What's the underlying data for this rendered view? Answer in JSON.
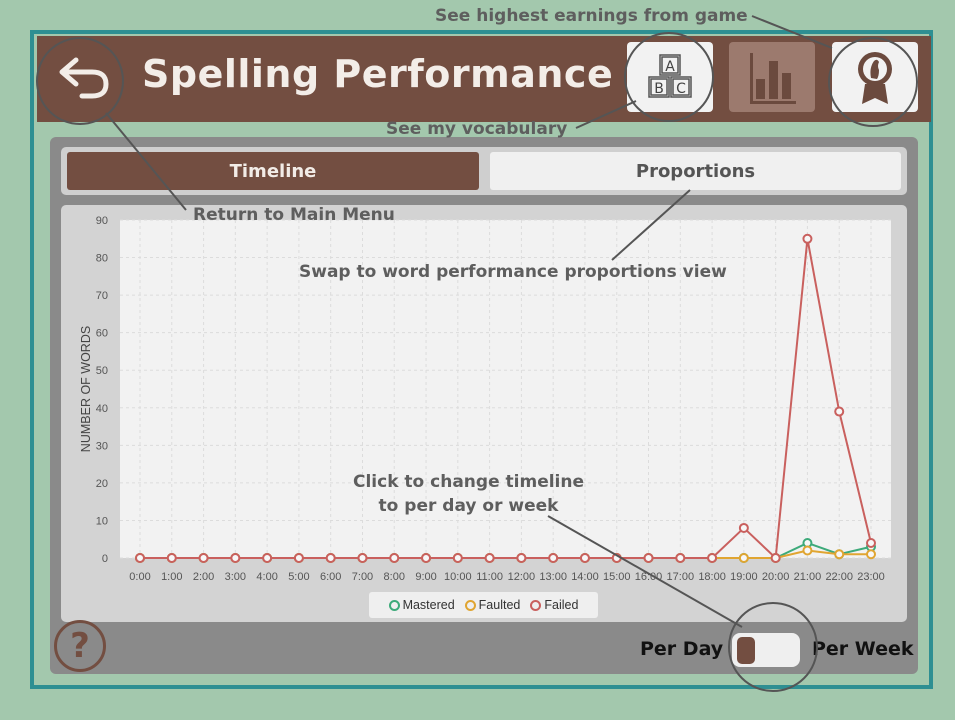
{
  "header": {
    "title": "Spelling Performance",
    "back_icon": "return-arrow-icon",
    "vocab_icon": "abc-blocks-icon",
    "stats_icon": "bar-chart-icon",
    "earnings_icon": "award-ribbon-icon"
  },
  "tabs": [
    {
      "label": "Timeline",
      "active": true
    },
    {
      "label": "Proportions",
      "active": false
    }
  ],
  "annotations": {
    "earnings": "See highest earnings from game",
    "vocab": "See my vocabulary",
    "return": "Return to Main Menu",
    "swap": "Swap to word performance proportions view",
    "click_line1": "Click to change timeline",
    "click_line2": "to per day or week"
  },
  "toggle": {
    "left_label": "Per Day",
    "right_label": "Per Week",
    "selected": "Per Day"
  },
  "help": {
    "icon": "question-mark-icon",
    "label": "?"
  },
  "colors": {
    "brand": "#734e41",
    "mastered": "#3daa7a",
    "faulted": "#e0a531",
    "failed": "#c9605e",
    "outline": "#2e8f92"
  },
  "chart_data": {
    "type": "line",
    "title": "",
    "xlabel": "",
    "ylabel": "NUMBER OF WORDS",
    "ylim": [
      0,
      90
    ],
    "yticks": [
      0,
      10,
      20,
      30,
      40,
      50,
      60,
      70,
      80,
      90
    ],
    "x": [
      "0:00",
      "1:00",
      "2:00",
      "3:00",
      "4:00",
      "5:00",
      "6:00",
      "7:00",
      "8:00",
      "9:00",
      "10:00",
      "11:00",
      "12:00",
      "13:00",
      "14:00",
      "15:00",
      "16:00",
      "17:00",
      "18:00",
      "19:00",
      "20:00",
      "21:00",
      "22:00",
      "23:00"
    ],
    "grid": true,
    "legend_position": "bottom",
    "series": [
      {
        "name": "Mastered",
        "color": "#3daa7a",
        "values": [
          0,
          0,
          0,
          0,
          0,
          0,
          0,
          0,
          0,
          0,
          0,
          0,
          0,
          0,
          0,
          0,
          0,
          0,
          0,
          0,
          0,
          4,
          1,
          3
        ]
      },
      {
        "name": "Faulted",
        "color": "#e0a531",
        "values": [
          0,
          0,
          0,
          0,
          0,
          0,
          0,
          0,
          0,
          0,
          0,
          0,
          0,
          0,
          0,
          0,
          0,
          0,
          0,
          0,
          0,
          2,
          1,
          1
        ]
      },
      {
        "name": "Failed",
        "color": "#c9605e",
        "values": [
          0,
          0,
          0,
          0,
          0,
          0,
          0,
          0,
          0,
          0,
          0,
          0,
          0,
          0,
          0,
          0,
          0,
          0,
          0,
          8,
          0,
          85,
          39,
          4
        ]
      }
    ]
  }
}
